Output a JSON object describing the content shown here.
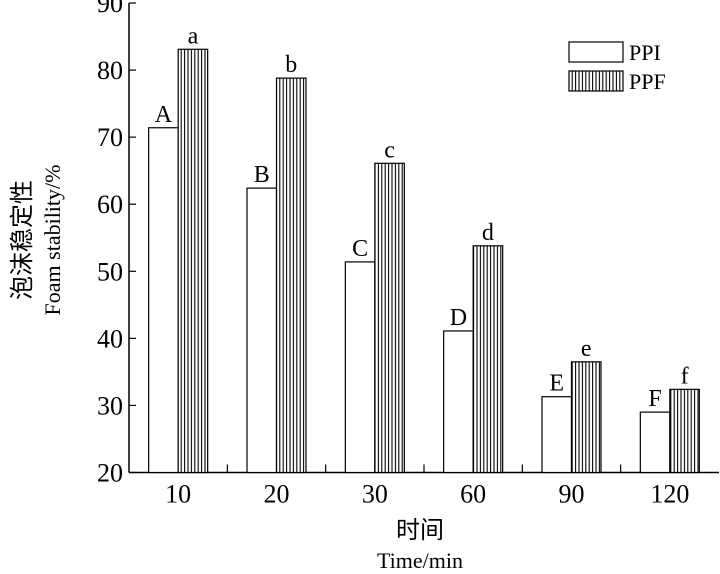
{
  "chart_data": {
    "type": "bar",
    "title": "",
    "xlabel_cn": "时间",
    "xlabel": "Time/min",
    "ylabel_cn": "泡沫稳定性",
    "ylabel": "Foam stability/%",
    "ylim": [
      20,
      90
    ],
    "yticks": [
      "20",
      "30",
      "40",
      "50",
      "60",
      "70",
      "80",
      "90"
    ],
    "categories": [
      "10",
      "20",
      "30",
      "60",
      "90",
      "120"
    ],
    "legend_position": "top-right",
    "series": [
      {
        "name": "PPI",
        "pattern": "white",
        "values": [
          71.4,
          62.4,
          51.4,
          41.1,
          31.3,
          29.0
        ],
        "labels": [
          "A",
          "B",
          "C",
          "D",
          "E",
          "F"
        ]
      },
      {
        "name": "PPF",
        "pattern": "vertical-stripes",
        "values": [
          83.1,
          78.8,
          66.1,
          53.8,
          36.5,
          32.4
        ],
        "labels": [
          "a",
          "b",
          "c",
          "d",
          "e",
          "f"
        ]
      }
    ]
  }
}
